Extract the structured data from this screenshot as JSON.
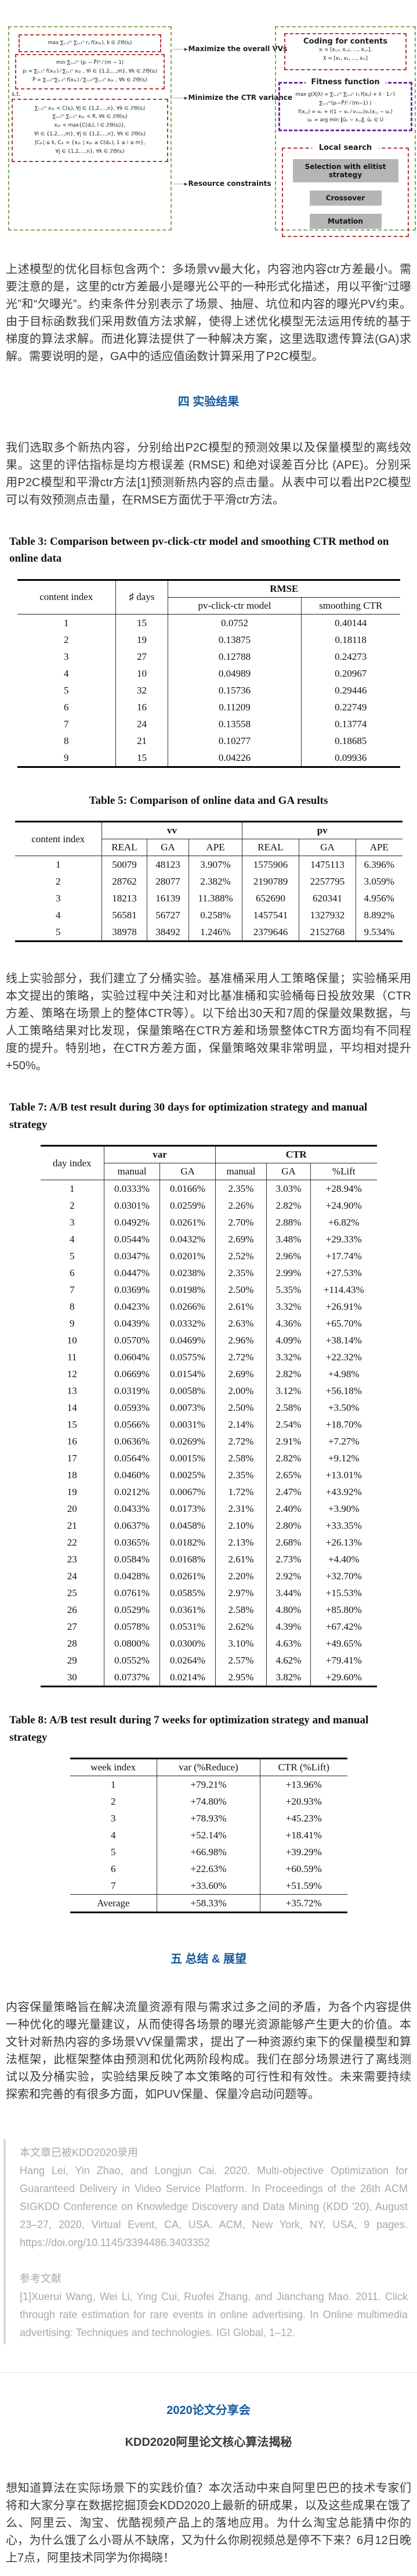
{
  "colors": {
    "heading_blue": "#15599d",
    "figure_green_dash": "#7cab57",
    "figure_red_dash": "#b23a3a",
    "figure_purple_dash": "#7030a0",
    "figure_button_gray": "#b5b5b5",
    "quote_text_gray": "#a8a8b0",
    "quote_border_gray": "#d8d8d8",
    "body_text": "#3b3b3b",
    "table_text": "#111111"
  },
  "figure": {
    "labels": [
      "Maximize the overall VVs",
      "Minimize the CTR variance",
      "Resource constraints"
    ],
    "arrow": "⋯⋯▸",
    "left": {
      "objective1": "max ∑ᵢ₌₁ᵐ ∑ⱼ₌₁ⁿ rᵢⱼ f(xᵢⱼₖ), k ∈ ℤΘ(sⱼ)",
      "objective2": [
        "min  ∑ᵢ₌₁ᵐ (pᵢ − P̄)² ⁄ (m − 1)",
        "pᵢ = ∑ⱼ₌₁ⁿ f(xᵢⱼₖ) ⁄ ∑ⱼ₌₁ⁿ xᵢⱼₖ , ∀i ∈ {1,2,…,m}, ∀k ∈ ℤΘ(sⱼ)",
        "P̄ = ∑ᵢ₌₁ᵐ∑ⱼ₌₁ⁿ f(xᵢⱼₖ) ⁄ ∑ᵢ₌₁ᵐ∑ⱼ₌₁ⁿ xᵢⱼₖ , ∀k ∈ ℤΘ(sⱼ)"
      ],
      "st": "s.t.",
      "constraints": [
        "∑ᵢ₌₁ᵐ xᵢⱼₖ < C(sⱼ), ∀j ∈ {1,2,…,n}, ∀k ∈ ℤΘ(sⱼ)",
        "∑ᵢ₌₁ᵐ ∑ⱼ₌₁ⁿ xᵢⱼₖ < R, ∀k ∈ ℤΘ(sⱼ)",
        "xᵢⱼₖ < max{C(dⱼₗ), l ∈ ℤΘ(sⱼ)},",
        "∀i ∈ {1,2,…,m}, ∀j ∈ {1,2,…,n}, ∀k ∈ ℤΘ(sⱼ)",
        "|Cⱼₖ| ≤ k, Cⱼₖ = {xᵢⱼₖ | xᵢⱼₖ ≥ C(dⱼₖ), 1 ≤ i ≤ m},",
        "∀j ∈ {1,2,…,n}, ∀k ∈ ℤΘ(sⱼ)"
      ]
    },
    "right": {
      "coding": {
        "title": "Coding for contents",
        "formulas": [
          "xᵢ = [xᵢ,₁, xᵢ,₂, …, xᵢ,ₙ],",
          "X = [x₁, x₂, …, xₘ]"
        ]
      },
      "fitness": {
        "title": "Fitness function",
        "formulas": [
          "max g(X|λ) = ∑ᵢ₌₁ᵐ ∑ⱼ₌₁ⁿ rᵢⱼ f(xᵢⱼ) + λ · 1 ⁄ ( ∑ᵢ₌₁ᵐ(pᵢ−P̄)² ⁄ (m−1) )",
          "f(xᵢ,ⱼ) = vₖ + r(1 − vₖ ⁄ vₘₐₓ)vₖ(xᵢ,ⱼ − uₖ)",
          "uₖ = arg min ‖ũₖ − xᵢ,ⱼ‖, ũₖ ∈ U"
        ]
      },
      "local_search": {
        "title": "Local search",
        "buttons": [
          "Selection with elitist strategy",
          "Crossover",
          "Mutation"
        ]
      }
    }
  },
  "paragraphs": {
    "p1": "上述模型的优化目标包含两个：多场景vv最大化，内容池内容ctr方差最小。需要注意的是，这里的ctr方差最小是曝光公平的一种形式化描述，用以平衡“过曝光”和“欠曝光”。约束条件分别表示了场景、抽屉、坑位和内容的曝光PV约束。由于目标函数我们采用数值方法求解，使得上述优化模型无法运用传统的基于梯度的算法求解。而进化算法提供了一种解决方案，这里选取遗传算法(GA)求解。需要说明的是，GA中的适应值函数计算采用了P2C模型。",
    "p2": "我们选取多个新热内容，分别给出P2C模型的预测效果以及保量模型的离线效果。这里的评估指标是均方根误差 (RMSE) 和绝对误差百分比 (APE)。分别采用P2C模型和平滑ctr方法[1]预测新热内容的点击量。从表中可以看出P2C模型可以有效预测点击量，在RMSE方面优于平滑ctr方法。",
    "p3": "线上实验部分，我们建立了分桶实验。基准桶采用人工策略保量；实验桶采用本文提出的策略，实验过程中关注和对比基准桶和实验桶每日投放效果（CTR方差、策略在场景上的整体CTR等）。以下给出30天和7周的保量效果数据，与人工策略结果对比发现，保量策略在CTR方差和场景整体CTR方面均有不同程度的提升。特别地，在CTR方差方面，保量策略效果非常明显，平均相对提升+50%。",
    "p4": "内容保量策略旨在解决流量资源有限与需求过多之间的矛盾，为各个内容提供一种优化的曝光量建议，从而使得各场景的曝光资源能够产生更大的价值。本文针对新热内容的多场景VV保量需求，提出了一种资源约束下的保量模型和算法框架，此框架整体由预测和优化两阶段构成。我们在部分场景进行了离线测试以及分桶实验，实验结果反映了本文策略的可行性和有效性。未来需要持续探索和完善的有很多方面，如PUV保量、保量冷启动问题等。"
  },
  "sections": {
    "s4": "四  实验结果",
    "s5": "五  总结 & 展望"
  },
  "table3": {
    "title": "Table 3: Comparison between pv-click-ctr model and smoothing CTR method on online data",
    "headers": {
      "col1": "content index",
      "col2": "♯ days",
      "group": "RMSE",
      "sub": [
        "pv-click-ctr model",
        "smoothing CTR"
      ]
    },
    "rows": [
      [
        "1",
        "15",
        "0.0752",
        "0.40144"
      ],
      [
        "2",
        "19",
        "0.13875",
        "0.18118"
      ],
      [
        "3",
        "27",
        "0.12788",
        "0.24273"
      ],
      [
        "4",
        "10",
        "0.04989",
        "0.20967"
      ],
      [
        "5",
        "32",
        "0.15736",
        "0.29446"
      ],
      [
        "6",
        "16",
        "0.11209",
        "0.22749"
      ],
      [
        "7",
        "24",
        "0.13558",
        "0.13774"
      ],
      [
        "8",
        "21",
        "0.10277",
        "0.18685"
      ],
      [
        "9",
        "15",
        "0.04226",
        "0.09936"
      ]
    ]
  },
  "table5": {
    "title": "Table 5: Comparison of online data and GA results",
    "headers": {
      "col1": "content index",
      "group1": "vv",
      "group2": "pv",
      "sub": [
        "REAL",
        "GA",
        "APE",
        "REAL",
        "GA",
        "APE"
      ]
    },
    "rows": [
      [
        "1",
        "50079",
        "48123",
        "3.907%",
        "1575906",
        "1475113",
        "6.396%"
      ],
      [
        "2",
        "28762",
        "28077",
        "2.382%",
        "2190789",
        "2257795",
        "3.059%"
      ],
      [
        "3",
        "18213",
        "16139",
        "11.388%",
        "652690",
        "620341",
        "4.956%"
      ],
      [
        "4",
        "56581",
        "56727",
        "0.258%",
        "1457541",
        "1327932",
        "8.892%"
      ],
      [
        "5",
        "38978",
        "38492",
        "1.246%",
        "2379646",
        "2152768",
        "9.534%"
      ]
    ]
  },
  "table7": {
    "title": "Table 7: A/B test result during 30 days for optimization strategy and manual strategy",
    "headers": {
      "col1": "day index",
      "group1": "var",
      "group2": "CTR",
      "sub": [
        "manual",
        "GA",
        "manual",
        "GA",
        "%Lift"
      ]
    },
    "rows": [
      [
        "1",
        "0.0333%",
        "0.0166%",
        "2.35%",
        "3.03%",
        "+28.94%"
      ],
      [
        "2",
        "0.0301%",
        "0.0259%",
        "2.26%",
        "2.82%",
        "+24.90%"
      ],
      [
        "3",
        "0.0492%",
        "0.0261%",
        "2.70%",
        "2.88%",
        "+6.82%"
      ],
      [
        "4",
        "0.0544%",
        "0.0432%",
        "2.69%",
        "3.48%",
        "+29.33%"
      ],
      [
        "5",
        "0.0347%",
        "0.0201%",
        "2.52%",
        "2.96%",
        "+17.74%"
      ],
      [
        "6",
        "0.0447%",
        "0.0238%",
        "2.35%",
        "2.99%",
        "+27.53%"
      ],
      [
        "7",
        "0.0369%",
        "0.0198%",
        "2.50%",
        "5.35%",
        "+114.43%"
      ],
      [
        "8",
        "0.0423%",
        "0.0266%",
        "2.61%",
        "3.32%",
        "+26.91%"
      ],
      [
        "9",
        "0.0439%",
        "0.0332%",
        "2.63%",
        "4.36%",
        "+65.70%"
      ],
      [
        "10",
        "0.0570%",
        "0.0469%",
        "2.96%",
        "4.09%",
        "+38.14%"
      ],
      [
        "11",
        "0.0604%",
        "0.0575%",
        "2.72%",
        "3.32%",
        "+22.32%"
      ],
      [
        "12",
        "0.0669%",
        "0.0154%",
        "2.69%",
        "2.82%",
        "+4.98%"
      ],
      [
        "13",
        "0.0319%",
        "0.0058%",
        "2.00%",
        "3.12%",
        "+56.18%"
      ],
      [
        "14",
        "0.0593%",
        "0.0073%",
        "2.50%",
        "2.58%",
        "+3.50%"
      ],
      [
        "15",
        "0.0566%",
        "0.0031%",
        "2.14%",
        "2.54%",
        "+18.70%"
      ],
      [
        "16",
        "0.0636%",
        "0.0269%",
        "2.72%",
        "2.91%",
        "+7.27%"
      ],
      [
        "17",
        "0.0564%",
        "0.0015%",
        "2.58%",
        "2.82%",
        "+9.12%"
      ],
      [
        "18",
        "0.0460%",
        "0.0025%",
        "2.35%",
        "2.65%",
        "+13.01%"
      ],
      [
        "19",
        "0.0212%",
        "0.0067%",
        "1.72%",
        "2.47%",
        "+43.92%"
      ],
      [
        "20",
        "0.0433%",
        "0.0173%",
        "2.31%",
        "2.40%",
        "+3.90%"
      ],
      [
        "21",
        "0.0637%",
        "0.0458%",
        "2.10%",
        "2.80%",
        "+33.35%"
      ],
      [
        "22",
        "0.0365%",
        "0.0182%",
        "2.13%",
        "2.68%",
        "+26.13%"
      ],
      [
        "23",
        "0.0584%",
        "0.0168%",
        "2.61%",
        "2.73%",
        "+4.40%"
      ],
      [
        "24",
        "0.0428%",
        "0.0261%",
        "2.20%",
        "2.92%",
        "+32.70%"
      ],
      [
        "25",
        "0.0761%",
        "0.0585%",
        "2.97%",
        "3.44%",
        "+15.53%"
      ],
      [
        "26",
        "0.0529%",
        "0.0361%",
        "2.58%",
        "4.80%",
        "+85.80%"
      ],
      [
        "27",
        "0.0578%",
        "0.0531%",
        "2.62%",
        "4.39%",
        "+67.42%"
      ],
      [
        "28",
        "0.0800%",
        "0.0300%",
        "3.10%",
        "4.63%",
        "+49.65%"
      ],
      [
        "29",
        "0.0552%",
        "0.0264%",
        "2.57%",
        "4.62%",
        "+79.41%"
      ],
      [
        "30",
        "0.0737%",
        "0.0214%",
        "2.95%",
        "3.82%",
        "+29.60%"
      ]
    ]
  },
  "table8": {
    "title": "Table 8: A/B test result during 7 weeks for optimization strategy and manual strategy",
    "headers": [
      "week index",
      "var (%Reduce)",
      "CTR (%Lift)"
    ],
    "rows": [
      [
        "1",
        "+79.21%",
        "+13.96%"
      ],
      [
        "2",
        "+74.80%",
        "+20.93%"
      ],
      [
        "3",
        "+78.93%",
        "+45.23%"
      ],
      [
        "4",
        "+52.14%",
        "+18.41%"
      ],
      [
        "5",
        "+66.98%",
        "+39.29%"
      ],
      [
        "6",
        "+22.63%",
        "+60.59%"
      ],
      [
        "7",
        "+33.60%",
        "+51.59%"
      ]
    ],
    "avg_rows": [
      [
        "Average",
        "+58.33%",
        "+35.72%"
      ]
    ]
  },
  "quote": {
    "accepted_note": "本文章已被KDD2020录用",
    "citation": "Hang Lei, Yin Zhao, and Longjun Cai. 2020. Multi-objective Optimization for Guaranteed Delivery in Video Service Platform. In Proceedings of the 26th ACM SIGKDD Conference on Knowledge Discovery and Data Mining (KDD '20), August 23–27, 2020, Virtual Event, CA, USA. ACM, New York, NY, USA, 9 pages. https://doi.org/10.1145/3394486.3403352",
    "ref_heading": "参考文献",
    "ref1": "[1]Xuerui Wang, Wei Li, Ying Cui, Ruofei Zhang, and Jianchang Mao. 2011. Click through rate estimation for rare events in online advertising. In Online multimedia advertising: Techniques and technologies. IGI Global, 1–12."
  },
  "footer": {
    "event_title": "2020论文分享会",
    "event_subtitle": "KDD2020阿里论文核心算法揭秘",
    "event_desc": "想知道算法在实际场景下的实践价值？本次活动中来自阿里巴巴的技术专家们将和大家分享在数据挖掘顶会KDD2020上最新的研成果，以及这些成果在饿了么、阿里云、淘宝、优酷视频产品上的落地应用。为什么淘宝总能猜中你的心，为什么饿了么小哥从不缺席，又为什么你刷视频总是停不下来？6月12日晚上7点，阿里技术同学为你揭晓！"
  }
}
